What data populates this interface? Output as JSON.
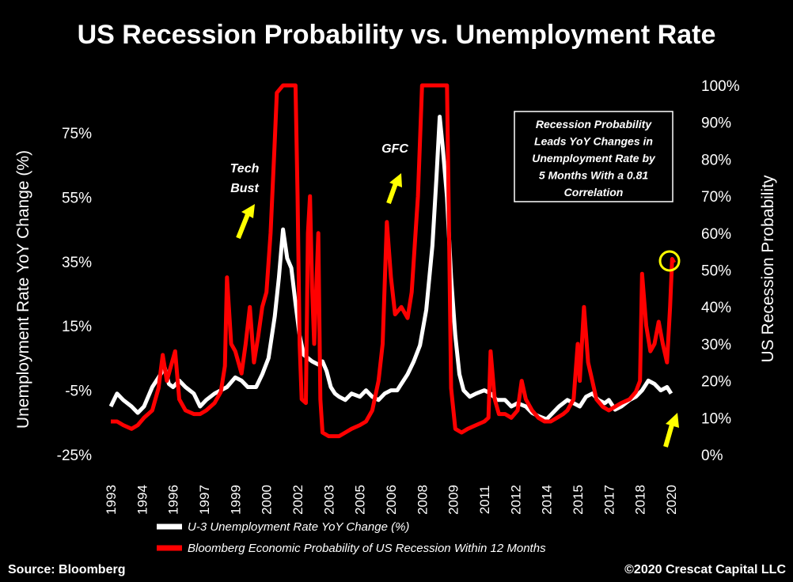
{
  "chart_data": {
    "type": "line",
    "title": "US Recession Probability vs. Unemployment Rate",
    "ylabel": "Unemployment Rate YoY Change (%)",
    "y2label": "US Recession Probability",
    "ylim": [
      -25,
      90
    ],
    "y2lim": [
      0,
      100
    ],
    "xlim": [
      1993,
      2020.5
    ],
    "y_ticks": [
      "-25%",
      "-5%",
      "15%",
      "35%",
      "55%",
      "75%"
    ],
    "y_tick_values": [
      -25,
      -5,
      15,
      35,
      55,
      75
    ],
    "y2_ticks": [
      "0%",
      "10%",
      "20%",
      "30%",
      "40%",
      "50%",
      "60%",
      "70%",
      "80%",
      "90%",
      "100%"
    ],
    "y2_tick_values": [
      0,
      10,
      20,
      30,
      40,
      50,
      60,
      70,
      80,
      90,
      100
    ],
    "x_ticks": [
      "1993",
      "1994",
      "1996",
      "1997",
      "1999",
      "2000",
      "2002",
      "2003",
      "2005",
      "2006",
      "2008",
      "2009",
      "2011",
      "2012",
      "2014",
      "2015",
      "2017",
      "2018",
      "2020"
    ],
    "x_tick_values": [
      1993.0,
      1994.5,
      1996.0,
      1997.5,
      1999.0,
      2000.5,
      2002.0,
      2003.5,
      2005.0,
      2006.5,
      2008.0,
      2009.5,
      2011.0,
      2012.5,
      2014.0,
      2015.5,
      2017.0,
      2018.5,
      2020.0
    ],
    "series": [
      {
        "name": "U-3 Unemployment Rate YoY Change (%)",
        "axis": "left",
        "color": "#ffffff",
        "points": [
          [
            1993.0,
            -10
          ],
          [
            1993.3,
            -6
          ],
          [
            1993.6,
            -8
          ],
          [
            1994.0,
            -10
          ],
          [
            1994.3,
            -12
          ],
          [
            1994.6,
            -10
          ],
          [
            1995.0,
            -4
          ],
          [
            1995.3,
            -1
          ],
          [
            1995.6,
            2
          ],
          [
            1995.8,
            -3
          ],
          [
            1996.0,
            -4
          ],
          [
            1996.3,
            -2
          ],
          [
            1996.6,
            -4
          ],
          [
            1997.0,
            -6
          ],
          [
            1997.3,
            -10
          ],
          [
            1997.6,
            -8
          ],
          [
            1998.0,
            -6
          ],
          [
            1998.3,
            -5
          ],
          [
            1998.6,
            -4
          ],
          [
            1999.0,
            -1
          ],
          [
            1999.3,
            -2
          ],
          [
            1999.6,
            -4
          ],
          [
            2000.0,
            -4
          ],
          [
            2000.3,
            0
          ],
          [
            2000.6,
            5
          ],
          [
            2000.9,
            18
          ],
          [
            2001.1,
            30
          ],
          [
            2001.3,
            45
          ],
          [
            2001.5,
            36
          ],
          [
            2001.7,
            33
          ],
          [
            2001.9,
            22
          ],
          [
            2002.1,
            12
          ],
          [
            2002.3,
            6
          ],
          [
            2002.5,
            5
          ],
          [
            2002.7,
            4
          ],
          [
            2003.0,
            3
          ],
          [
            2003.2,
            4
          ],
          [
            2003.4,
            1
          ],
          [
            2003.6,
            -4
          ],
          [
            2003.8,
            -6
          ],
          [
            2004.0,
            -7
          ],
          [
            2004.3,
            -8
          ],
          [
            2004.6,
            -6
          ],
          [
            2005.0,
            -7
          ],
          [
            2005.3,
            -5
          ],
          [
            2005.6,
            -7
          ],
          [
            2005.9,
            -8
          ],
          [
            2006.2,
            -6
          ],
          [
            2006.5,
            -5
          ],
          [
            2006.8,
            -5
          ],
          [
            2007.0,
            -3
          ],
          [
            2007.3,
            0
          ],
          [
            2007.6,
            4
          ],
          [
            2007.9,
            9
          ],
          [
            2008.2,
            20
          ],
          [
            2008.5,
            40
          ],
          [
            2008.7,
            62
          ],
          [
            2008.85,
            80
          ],
          [
            2009.0,
            70
          ],
          [
            2009.2,
            55
          ],
          [
            2009.4,
            30
          ],
          [
            2009.6,
            12
          ],
          [
            2009.8,
            0
          ],
          [
            2010.0,
            -5
          ],
          [
            2010.3,
            -7
          ],
          [
            2010.6,
            -6
          ],
          [
            2011.0,
            -5
          ],
          [
            2011.3,
            -6
          ],
          [
            2011.6,
            -8
          ],
          [
            2012.0,
            -8
          ],
          [
            2012.3,
            -10
          ],
          [
            2012.6,
            -9
          ],
          [
            2013.0,
            -10
          ],
          [
            2013.3,
            -12
          ],
          [
            2013.6,
            -13
          ],
          [
            2014.0,
            -14
          ],
          [
            2014.3,
            -12
          ],
          [
            2014.6,
            -10
          ],
          [
            2015.0,
            -8
          ],
          [
            2015.3,
            -9
          ],
          [
            2015.6,
            -10
          ],
          [
            2015.9,
            -7
          ],
          [
            2016.2,
            -6
          ],
          [
            2016.5,
            -8
          ],
          [
            2016.8,
            -9
          ],
          [
            2017.0,
            -8
          ],
          [
            2017.3,
            -11
          ],
          [
            2017.6,
            -10
          ],
          [
            2018.0,
            -8
          ],
          [
            2018.3,
            -7
          ],
          [
            2018.6,
            -5
          ],
          [
            2018.9,
            -2
          ],
          [
            2019.2,
            -3
          ],
          [
            2019.5,
            -5
          ],
          [
            2019.8,
            -4
          ],
          [
            2020.0,
            -6
          ]
        ]
      },
      {
        "name": "Bloomberg Economic Probability of US Recession Within 12 Months",
        "axis": "right",
        "color": "#ff0000",
        "points": [
          [
            1993.0,
            9
          ],
          [
            1993.3,
            9
          ],
          [
            1993.6,
            8
          ],
          [
            1994.0,
            7
          ],
          [
            1994.3,
            8
          ],
          [
            1994.6,
            10
          ],
          [
            1995.0,
            12
          ],
          [
            1995.3,
            18
          ],
          [
            1995.5,
            27
          ],
          [
            1995.7,
            20
          ],
          [
            1995.9,
            24
          ],
          [
            1996.1,
            28
          ],
          [
            1996.3,
            15
          ],
          [
            1996.6,
            12
          ],
          [
            1997.0,
            11
          ],
          [
            1997.3,
            11
          ],
          [
            1997.6,
            12
          ],
          [
            1998.0,
            14
          ],
          [
            1998.3,
            17
          ],
          [
            1998.5,
            24
          ],
          [
            1998.6,
            48
          ],
          [
            1998.8,
            30
          ],
          [
            1999.0,
            28
          ],
          [
            1999.3,
            22
          ],
          [
            1999.5,
            30
          ],
          [
            1999.7,
            40
          ],
          [
            1999.9,
            25
          ],
          [
            2000.1,
            32
          ],
          [
            2000.3,
            40
          ],
          [
            2000.5,
            44
          ],
          [
            2000.7,
            60
          ],
          [
            2000.9,
            85
          ],
          [
            2001.0,
            98
          ],
          [
            2001.3,
            100
          ],
          [
            2001.6,
            100
          ],
          [
            2001.9,
            100
          ],
          [
            2002.0,
            70
          ],
          [
            2002.1,
            30
          ],
          [
            2002.2,
            15
          ],
          [
            2002.4,
            14
          ],
          [
            2002.5,
            60
          ],
          [
            2002.6,
            70
          ],
          [
            2002.7,
            45
          ],
          [
            2002.8,
            30
          ],
          [
            2003.0,
            60
          ],
          [
            2003.1,
            15
          ],
          [
            2003.2,
            6
          ],
          [
            2003.5,
            5
          ],
          [
            2003.8,
            5
          ],
          [
            2004.0,
            5
          ],
          [
            2004.3,
            6
          ],
          [
            2004.6,
            7
          ],
          [
            2005.0,
            8
          ],
          [
            2005.3,
            9
          ],
          [
            2005.6,
            12
          ],
          [
            2005.9,
            20
          ],
          [
            2006.1,
            30
          ],
          [
            2006.3,
            63
          ],
          [
            2006.5,
            48
          ],
          [
            2006.7,
            38
          ],
          [
            2007.0,
            40
          ],
          [
            2007.3,
            37
          ],
          [
            2007.5,
            44
          ],
          [
            2007.8,
            70
          ],
          [
            2008.0,
            100
          ],
          [
            2008.3,
            100
          ],
          [
            2008.6,
            100
          ],
          [
            2008.9,
            100
          ],
          [
            2009.2,
            100
          ],
          [
            2009.3,
            60
          ],
          [
            2009.4,
            18
          ],
          [
            2009.6,
            7
          ],
          [
            2009.9,
            6
          ],
          [
            2010.2,
            7
          ],
          [
            2010.6,
            8
          ],
          [
            2011.0,
            9
          ],
          [
            2011.2,
            10
          ],
          [
            2011.3,
            28
          ],
          [
            2011.5,
            15
          ],
          [
            2011.7,
            11
          ],
          [
            2012.0,
            11
          ],
          [
            2012.3,
            10
          ],
          [
            2012.6,
            12
          ],
          [
            2012.8,
            20
          ],
          [
            2013.0,
            15
          ],
          [
            2013.3,
            12
          ],
          [
            2013.6,
            10
          ],
          [
            2013.9,
            9
          ],
          [
            2014.2,
            9
          ],
          [
            2014.5,
            10
          ],
          [
            2014.8,
            11
          ],
          [
            2015.0,
            12
          ],
          [
            2015.3,
            15
          ],
          [
            2015.5,
            30
          ],
          [
            2015.6,
            20
          ],
          [
            2015.8,
            40
          ],
          [
            2016.0,
            25
          ],
          [
            2016.2,
            20
          ],
          [
            2016.4,
            15
          ],
          [
            2016.7,
            13
          ],
          [
            2017.0,
            12
          ],
          [
            2017.3,
            13
          ],
          [
            2017.6,
            14
          ],
          [
            2018.0,
            15
          ],
          [
            2018.3,
            17
          ],
          [
            2018.5,
            20
          ],
          [
            2018.6,
            49
          ],
          [
            2018.8,
            35
          ],
          [
            2019.0,
            28
          ],
          [
            2019.2,
            30
          ],
          [
            2019.4,
            36
          ],
          [
            2019.6,
            30
          ],
          [
            2019.8,
            25
          ],
          [
            2019.95,
            40
          ],
          [
            2020.05,
            53
          ],
          [
            2020.15,
            52
          ]
        ]
      }
    ]
  },
  "annotations": {
    "tech_bust_line1": "Tech",
    "tech_bust_line2": "Bust",
    "gfc": "GFC",
    "box_lines": [
      "Recession Probability",
      "Leads YoY Changes in",
      "Unemployment Rate by",
      "5 Months With a 0.81",
      "Correlation"
    ]
  },
  "legend": {
    "white_label": "U-3 Unemployment Rate YoY Change (%)",
    "red_label": "Bloomberg Economic Probability of US Recession Within 12 Months"
  },
  "footer": {
    "source": "Source: Bloomberg",
    "copyright": "©2020 Crescat Capital LLC"
  },
  "colors": {
    "background": "#000000",
    "unemployment_line": "#ffffff",
    "recession_line": "#ff0000",
    "arrow": "#ffff00",
    "circle": "#ffff00"
  }
}
